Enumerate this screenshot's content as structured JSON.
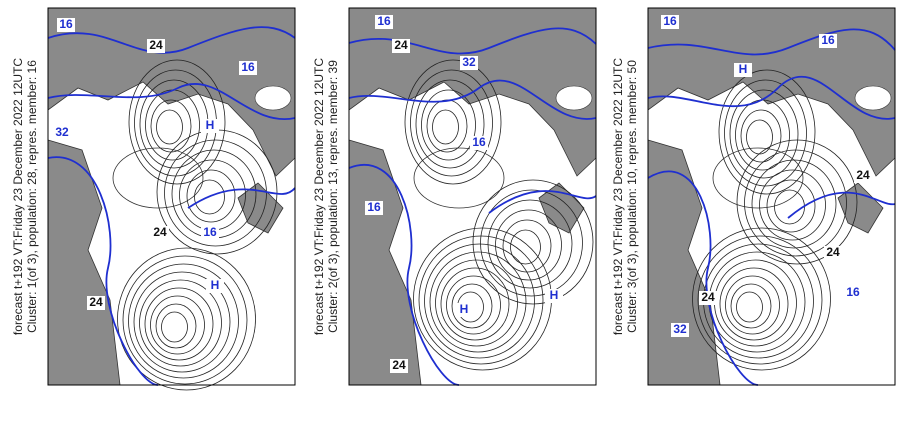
{
  "panels": [
    {
      "caption_line1": "forecast t+192 VT:Friday 23 December 2022 12UTC",
      "caption_line2": "Cluster: 1(of 3), population: 28, repres. member: 16",
      "labels": [
        "16",
        "24",
        "16",
        "32",
        "24",
        "16",
        "H",
        "24",
        "H"
      ]
    },
    {
      "caption_line1": "forecast t+192 VT:Friday 23 December 2022 12UTC",
      "caption_line2": "Cluster: 2(of 3), population: 13, repres. member: 39",
      "labels": [
        "16",
        "24",
        "32",
        "16",
        "24",
        "H",
        "H",
        "16"
      ]
    },
    {
      "caption_line1": "forecast t+192 VT:Friday 23 December 2022 12UTC",
      "caption_line2": "Cluster: 3(of 3), population: 10, repres. member: 50",
      "labels": [
        "16",
        "16",
        "24",
        "16",
        "24",
        "32",
        "H",
        "24"
      ]
    }
  ]
}
